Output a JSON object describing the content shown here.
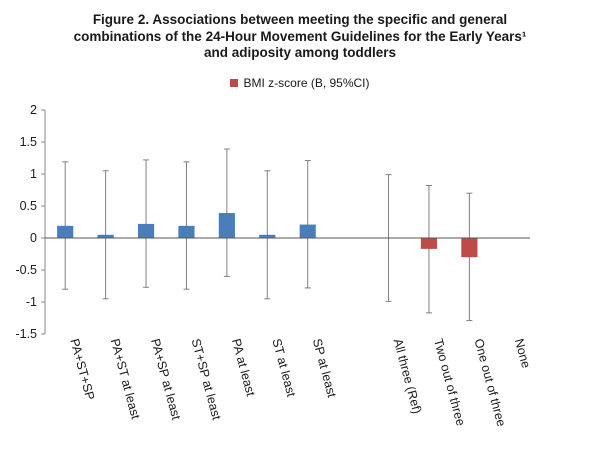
{
  "colors": {
    "general": "#4a7ebb",
    "specific": "#be4b48"
  },
  "chart_data": {
    "type": "bar",
    "title": [
      "Figure 2. Associations between meeting the specific and general",
      "combinations of the 24-Hour Movement Guidelines for the Early Years¹",
      "and adiposity among toddlers"
    ],
    "legend": {
      "label": "BMI z-score (B, 95%CI)",
      "placement": "top-center"
    },
    "xlabel": "",
    "ylabel": "",
    "ylim": [
      -1.5,
      2
    ],
    "yticks": [
      "2",
      "1.5",
      "1",
      "0.5",
      "0",
      "-0.5",
      "-1",
      "-1.5"
    ],
    "categories": [
      "PA+ST+SP",
      "PA+ST at least",
      "PA+SP at least",
      "ST+SP at least",
      "PA at least",
      "ST at least",
      "SP at least",
      "",
      "All three (Ref)",
      "Two out of three",
      "One out of three",
      "None"
    ],
    "values": [
      0.19,
      0.05,
      0.22,
      0.19,
      0.39,
      0.05,
      0.21,
      null,
      0,
      -0.17,
      -0.3,
      null
    ],
    "ci_low": [
      -0.8,
      -0.95,
      -0.77,
      -0.8,
      -0.6,
      -0.95,
      -0.78,
      null,
      -0.99,
      -1.17,
      -1.29,
      null
    ],
    "ci_high": [
      1.19,
      1.05,
      1.22,
      1.19,
      1.39,
      1.05,
      1.21,
      null,
      0.99,
      0.82,
      0.7,
      null
    ],
    "bar_colors": [
      "general",
      "general",
      "general",
      "general",
      "general",
      "general",
      "general",
      null,
      "specific",
      "specific",
      "specific",
      null
    ],
    "grid": false
  }
}
